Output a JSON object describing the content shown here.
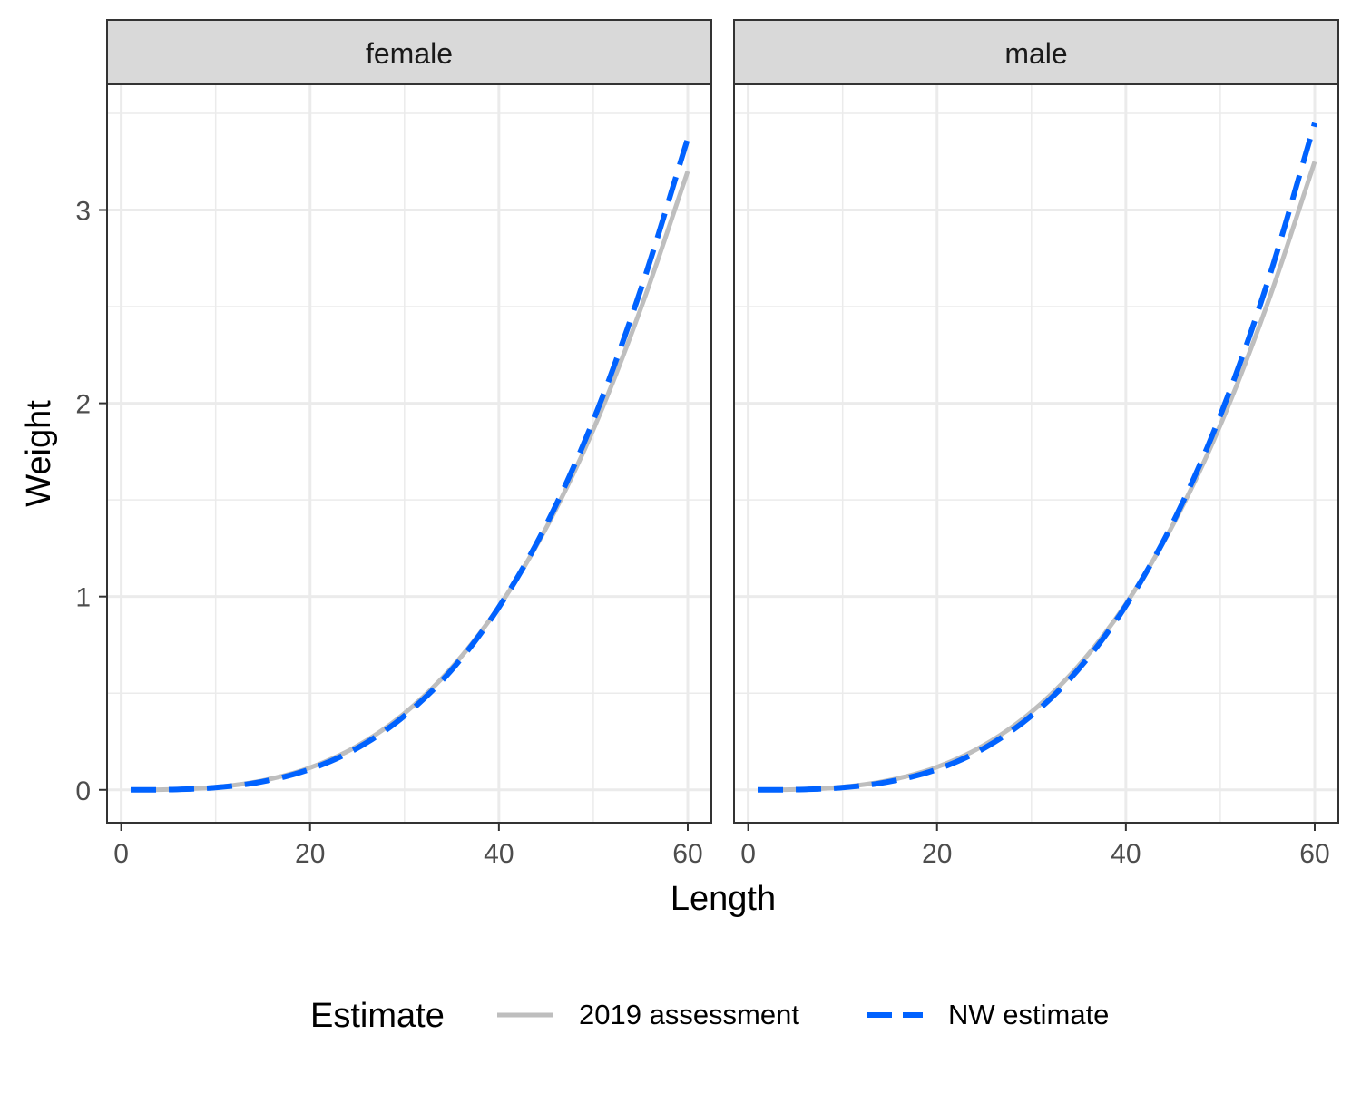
{
  "chart_data": {
    "type": "line",
    "facet_variable": "sex",
    "panels": [
      {
        "label": "female",
        "series": [
          {
            "name": "2019 assessment",
            "x": [
              1,
              5,
              10,
              15,
              20,
              25,
              30,
              35,
              40,
              45,
              50,
              55,
              60
            ],
            "y": [
              0.0,
              0.002,
              0.014,
              0.048,
              0.115,
              0.227,
              0.396,
              0.632,
              0.948,
              1.355,
              1.864,
              2.487,
              3.2
            ]
          },
          {
            "name": "NW estimate",
            "x": [
              1,
              5,
              10,
              15,
              20,
              25,
              30,
              35,
              40,
              45,
              50,
              55,
              60
            ],
            "y": [
              0.0,
              0.001,
              0.012,
              0.043,
              0.107,
              0.216,
              0.383,
              0.621,
              0.945,
              1.37,
              1.912,
              2.585,
              3.37
            ]
          }
        ]
      },
      {
        "label": "male",
        "series": [
          {
            "name": "2019 assessment",
            "x": [
              1,
              5,
              10,
              15,
              20,
              25,
              30,
              35,
              40,
              45,
              50,
              55,
              60
            ],
            "y": [
              0.0,
              0.002,
              0.015,
              0.05,
              0.118,
              0.232,
              0.403,
              0.643,
              0.962,
              1.373,
              1.887,
              2.516,
              3.25
            ]
          },
          {
            "name": "NW estimate",
            "x": [
              1,
              5,
              10,
              15,
              20,
              25,
              30,
              35,
              40,
              45,
              50,
              55,
              60
            ],
            "y": [
              0.0,
              0.001,
              0.012,
              0.043,
              0.106,
              0.216,
              0.384,
              0.625,
              0.953,
              1.385,
              1.937,
              2.625,
              3.45
            ]
          }
        ]
      }
    ],
    "xlabel": "Length",
    "ylabel": "Weight",
    "xlim": [
      -1.5,
      62.5
    ],
    "ylim": [
      -0.17,
      3.65
    ],
    "xticks": [
      0,
      20,
      40,
      60
    ],
    "xtick_labels": [
      "0",
      "20",
      "40",
      "60"
    ],
    "yticks": [
      0,
      1,
      2,
      3
    ],
    "ytick_labels": [
      "0",
      "1",
      "2",
      "3"
    ],
    "grid": true,
    "legend": {
      "title": "Estimate",
      "position": "bottom",
      "entries": [
        {
          "name": "2019 assessment",
          "color": "#BEBEBE",
          "dash": "solid"
        },
        {
          "name": "NW estimate",
          "color": "#0062FF",
          "dash": "dashed"
        }
      ]
    },
    "colors": {
      "2019 assessment": "#BEBEBE",
      "NW estimate": "#0062FF",
      "strip_background": "#D9D9D9",
      "grid": "#EBEBEB",
      "panel_border": "#333333"
    }
  }
}
